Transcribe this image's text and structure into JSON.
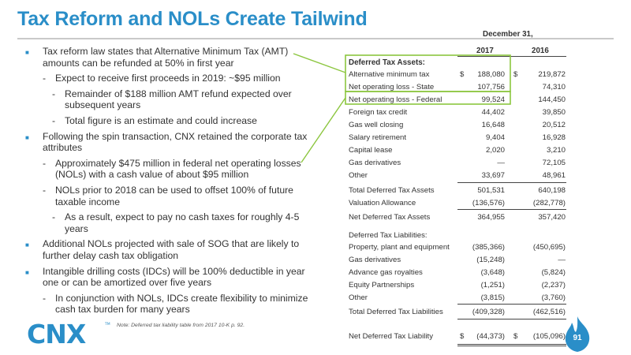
{
  "title": "Tax Reform and NOLs Create Tailwind",
  "bullets": [
    {
      "level": 1,
      "text": "Tax reform law states that Alternative Minimum Tax (AMT) amounts can be refunded at 50% in first year"
    },
    {
      "level": 2,
      "text": "Expect to receive first proceeds in 2019: ~$95 million"
    },
    {
      "level": 3,
      "text": "Remainder of $188 million AMT refund expected over subsequent years"
    },
    {
      "level": 3,
      "text": "Total figure is an estimate and could increase"
    },
    {
      "level": 1,
      "text": "Following the spin transaction, CNX retained the corporate tax attributes"
    },
    {
      "level": 2,
      "text": "Approximately $475 million in federal net operating losses (NOLs) with a cash value of about $95 million"
    },
    {
      "level": 2,
      "text": "NOLs prior to 2018 can be used to offset 100% of future taxable income"
    },
    {
      "level": 3,
      "text": "As a result, expect to pay no cash taxes for roughly 4-5 years"
    },
    {
      "level": 1,
      "text": "Additional NOLs projected with sale of SOG that are likely to further delay cash tax obligation"
    },
    {
      "level": 1,
      "text": "Intangible drilling costs (IDCs) will be 100% deductible in year one or can be amortized over five years"
    },
    {
      "level": 2,
      "text": "In conjunction with NOLs, IDCs create flexibility to minimize cash tax burden for many years"
    }
  ],
  "bullet_markers": {
    "level1": "■",
    "level2": "-",
    "level3": "-"
  },
  "table": {
    "period_header": "December 31,",
    "year1": "2017",
    "year2": "2016",
    "dollar": "$",
    "section1_title": "Deferred Tax Assets:",
    "rows": [
      {
        "label": "Alternative minimum tax",
        "v2017": "188,080",
        "v2016": "219,872"
      },
      {
        "label": "Net operating loss - State",
        "v2017": "107,756",
        "v2016": "74,310"
      },
      {
        "label": "Net operating loss - Federal",
        "v2017": "99,524",
        "v2016": "144,450"
      },
      {
        "label": "Foreign tax credit",
        "v2017": "44,402",
        "v2016": "39,850"
      },
      {
        "label": "Gas well closing",
        "v2017": "16,648",
        "v2016": "20,512"
      },
      {
        "label": "Salary retirement",
        "v2017": "9,404",
        "v2016": "16,928"
      },
      {
        "label": "Capital lease",
        "v2017": "2,020",
        "v2016": "3,210"
      },
      {
        "label": "Gas derivatives",
        "v2017": "—",
        "v2016": "72,105"
      },
      {
        "label": "Other",
        "v2017": "33,697",
        "v2016": "48,961"
      },
      {
        "label": "Total Deferred Tax Assets",
        "v2017": "501,531",
        "v2016": "640,198"
      },
      {
        "label": "Valuation Allowance",
        "v2017": "(136,576)",
        "v2016": "(282,778)"
      },
      {
        "label": "Net Deferred Tax Assets",
        "v2017": "364,955",
        "v2016": "357,420"
      },
      {
        "label": "Deferred Tax Liabilities:",
        "v2017": "",
        "v2016": ""
      },
      {
        "label": "Property, plant and equipment",
        "v2017": "(385,366)",
        "v2016": "(450,695)"
      },
      {
        "label": "Gas derivatives",
        "v2017": "(15,248)",
        "v2016": "—"
      },
      {
        "label": "Advance gas royalties",
        "v2017": "(3,648)",
        "v2016": "(5,824)"
      },
      {
        "label": "Equity Partnerships",
        "v2017": "(1,251)",
        "v2016": "(2,237)"
      },
      {
        "label": "Other",
        "v2017": "(3,815)",
        "v2016": "(3,760)"
      },
      {
        "label": "Total Deferred Tax Liabilities",
        "v2017": "(409,328)",
        "v2016": "(462,516)"
      },
      {
        "label": "Net Deferred Tax Liability",
        "v2017": "(44,373)",
        "v2016": "(105,096)"
      }
    ]
  },
  "note": "Note: Deferred tax liability table from 2017 10-K p. 92.",
  "logo_text": "CNX",
  "logo_tm": "TM",
  "page_number": "91",
  "colors": {
    "title": "#2a8ec8",
    "highlight": "#8cc63f",
    "flame": "#2a8ec8",
    "logo": "#2a8ec8"
  }
}
